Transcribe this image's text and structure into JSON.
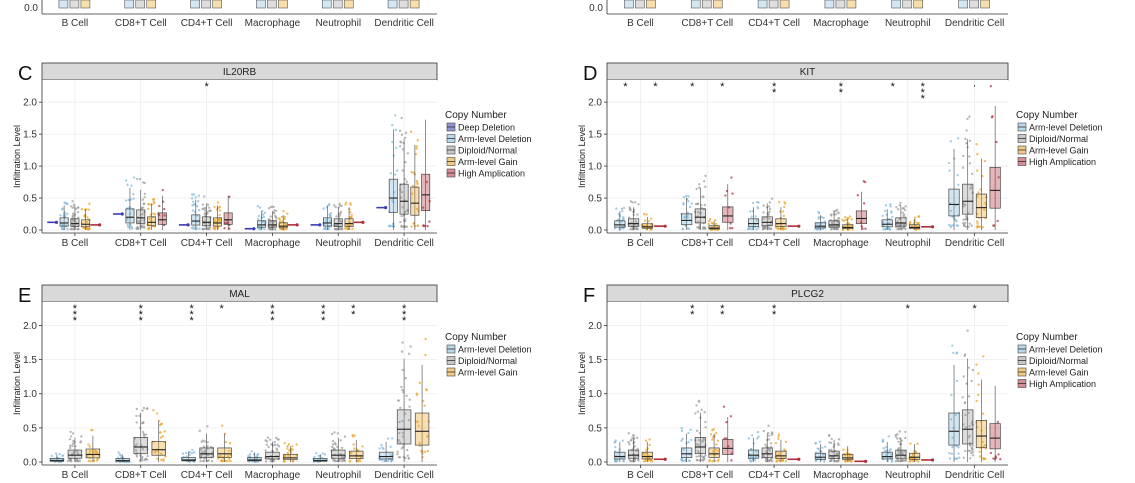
{
  "figure": {
    "top_row": {
      "categories": [
        "B Cell",
        "CD8+T Cell",
        "CD4+T Cell",
        "Macrophage",
        "Neutrophil",
        "Dendritic Cell"
      ],
      "y_tick": "0.0"
    }
  },
  "legend_title": "Copy Number",
  "colors": {
    "Deep Deletion": "#3b3bb3",
    "Arm-level Deletion": "#7fb8d8",
    "Diploid/Normal": "#9a9a9a",
    "Arm-level Gain": "#e8a21f",
    "High Amplication": "#b22d3a"
  },
  "chart_data": [
    {
      "panel": "C",
      "type": "box",
      "title": "IL20RB",
      "ylabel": "Infiltration Level",
      "ylim": [
        0,
        2.3
      ],
      "yticks": [
        "0.0",
        "0.5",
        "1.0",
        "1.5",
        "2.0"
      ],
      "categories": [
        "B Cell",
        "CD8+T Cell",
        "CD4+T Cell",
        "Macrophage",
        "Neutrophil",
        "Dendritic Cell"
      ],
      "legend": [
        "Deep Deletion",
        "Arm-level Deletion",
        "Diploid/Normal",
        "Arm-level Gain",
        "High Amplication"
      ],
      "significance": [
        "",
        "",
        "· *",
        "",
        "",
        ""
      ],
      "series": [
        {
          "name": "Deep Deletion",
          "medians": [
            0.12,
            0.25,
            0.08,
            0.02,
            0.08,
            0.35
          ]
        },
        {
          "name": "Arm-level Deletion",
          "medians": [
            0.11,
            0.2,
            0.14,
            0.08,
            0.11,
            0.5
          ]
        },
        {
          "name": "Diploid/Normal",
          "medians": [
            0.1,
            0.19,
            0.12,
            0.08,
            0.1,
            0.45
          ]
        },
        {
          "name": "Arm-level Gain",
          "medians": [
            0.09,
            0.12,
            0.11,
            0.06,
            0.1,
            0.42
          ]
        },
        {
          "name": "High Amplication",
          "medians": [
            0.08,
            0.16,
            0.16,
            0.08,
            0.12,
            0.55
          ]
        }
      ]
    },
    {
      "panel": "D",
      "type": "box",
      "title": "KIT",
      "ylabel": "Infiltration Level",
      "ylim": [
        0,
        2.3
      ],
      "yticks": [
        "0.0",
        "0.5",
        "1.0",
        "1.5",
        "2.0"
      ],
      "categories": [
        "B Cell",
        "CD8+T Cell",
        "CD4+T Cell",
        "Macrophage",
        "Neutrophil",
        "Dendritic Cell"
      ],
      "legend": [
        "Arm-level Deletion",
        "Diploid/Normal",
        "Arm-level Gain",
        "High Amplication"
      ],
      "significance": [
        "*  *",
        "*  *",
        "**",
        "**",
        "*  ***",
        "·"
      ],
      "series": [
        {
          "name": "Arm-level Deletion",
          "medians": [
            0.08,
            0.15,
            0.1,
            0.06,
            0.09,
            0.4
          ]
        },
        {
          "name": "Diploid/Normal",
          "medians": [
            0.1,
            0.2,
            0.12,
            0.08,
            0.11,
            0.45
          ]
        },
        {
          "name": "Arm-level Gain",
          "medians": [
            0.05,
            0.03,
            0.1,
            0.04,
            0.04,
            0.35
          ]
        },
        {
          "name": "High Amplication",
          "medians": [
            0.06,
            0.22,
            0.06,
            0.18,
            0.05,
            0.62
          ]
        }
      ]
    },
    {
      "panel": "E",
      "type": "box",
      "title": "MAL",
      "ylabel": "Infiltration Level",
      "ylim": [
        0,
        2.3
      ],
      "yticks": [
        "0.0",
        "0.5",
        "1.0",
        "1.5",
        "2.0"
      ],
      "categories": [
        "B Cell",
        "CD8+T Cell",
        "CD4+T Cell",
        "Macrophage",
        "Neutrophil",
        "Dendritic Cell"
      ],
      "legend": [
        "Arm-level Deletion",
        "Diploid/Normal",
        "Arm-level Gain"
      ],
      "significance": [
        "***",
        "***",
        "***  *",
        "***",
        "***  **",
        "***"
      ],
      "series": [
        {
          "name": "Arm-level Deletion",
          "medians": [
            0.02,
            0.02,
            0.03,
            0.03,
            0.02,
            0.08
          ]
        },
        {
          "name": "Diploid/Normal",
          "medians": [
            0.1,
            0.22,
            0.12,
            0.08,
            0.1,
            0.48
          ]
        },
        {
          "name": "Arm-level Gain",
          "medians": [
            0.11,
            0.18,
            0.12,
            0.06,
            0.09,
            0.45
          ]
        }
      ]
    },
    {
      "panel": "F",
      "type": "box",
      "title": "PLCG2",
      "ylabel": "Infiltration Level",
      "ylim": [
        0,
        2.3
      ],
      "yticks": [
        "0.0",
        "0.5",
        "1.0",
        "1.5",
        "2.0"
      ],
      "categories": [
        "B Cell",
        "CD8+T Cell",
        "CD4+T Cell",
        "Macrophage",
        "Neutrophil",
        "Dendritic Cell"
      ],
      "legend": [
        "Arm-level Deletion",
        "Diploid/Normal",
        "Arm-level Gain",
        "High Amplication"
      ],
      "significance": [
        "",
        "**  **",
        "**",
        "",
        "*",
        "*"
      ],
      "series": [
        {
          "name": "Arm-level Deletion",
          "medians": [
            0.08,
            0.12,
            0.1,
            0.07,
            0.08,
            0.45
          ]
        },
        {
          "name": "Diploid/Normal",
          "medians": [
            0.1,
            0.22,
            0.12,
            0.09,
            0.1,
            0.48
          ]
        },
        {
          "name": "Arm-level Gain",
          "medians": [
            0.08,
            0.12,
            0.09,
            0.06,
            0.07,
            0.38
          ]
        },
        {
          "name": "High Amplication",
          "medians": [
            0.04,
            0.2,
            0.04,
            0.01,
            0.03,
            0.35
          ]
        }
      ]
    }
  ]
}
